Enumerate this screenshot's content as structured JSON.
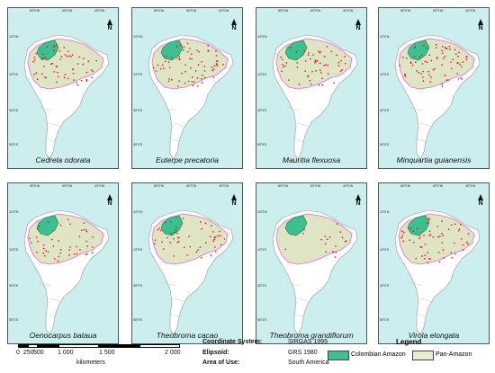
{
  "panels": [
    {
      "species": "Cedrela odorata"
    },
    {
      "species": "Euterpe precatoria"
    },
    {
      "species": "Mauritia flexuosa"
    },
    {
      "species": "Minquartia guianensis"
    },
    {
      "species": "Oenocarpus bataua"
    },
    {
      "species": "Theobroma cacao"
    },
    {
      "species": "Theobroma grandiflorum"
    },
    {
      "species": "Virola elongata"
    }
  ],
  "grid_labels": {
    "lon": [
      "80°0'W",
      "60°0'W",
      "40°0'W"
    ],
    "lat": [
      "10°0'N",
      "10°0'S",
      "30°0'S",
      "50°0'S"
    ]
  },
  "north_arrow": "N",
  "scale": {
    "ticks": [
      "0",
      "250",
      "500",
      "1 000",
      "1 500",
      "2 000"
    ],
    "unit": "kilometers"
  },
  "coordinate_info": {
    "system_label": "Coordinate System:",
    "system_value": "SIRGAS 1995",
    "ellipsoid_label": "Elipsoid:",
    "ellipsoid_value": "GRS 1980",
    "area_label": "Area of Use:",
    "area_value": "South America"
  },
  "legend": {
    "title": "Legend",
    "items": [
      {
        "label": "Colombian Amazon",
        "color": "#3dbf8f"
      },
      {
        "label": "Pan-Amazon",
        "color": "#e8ebd0"
      }
    ]
  },
  "colors": {
    "ocean": "#cdeeef",
    "continent": "#ffffff",
    "pan_amazon": "#dfe5c4",
    "boundary": "#e06cd0",
    "occurrence": "#e01010"
  }
}
